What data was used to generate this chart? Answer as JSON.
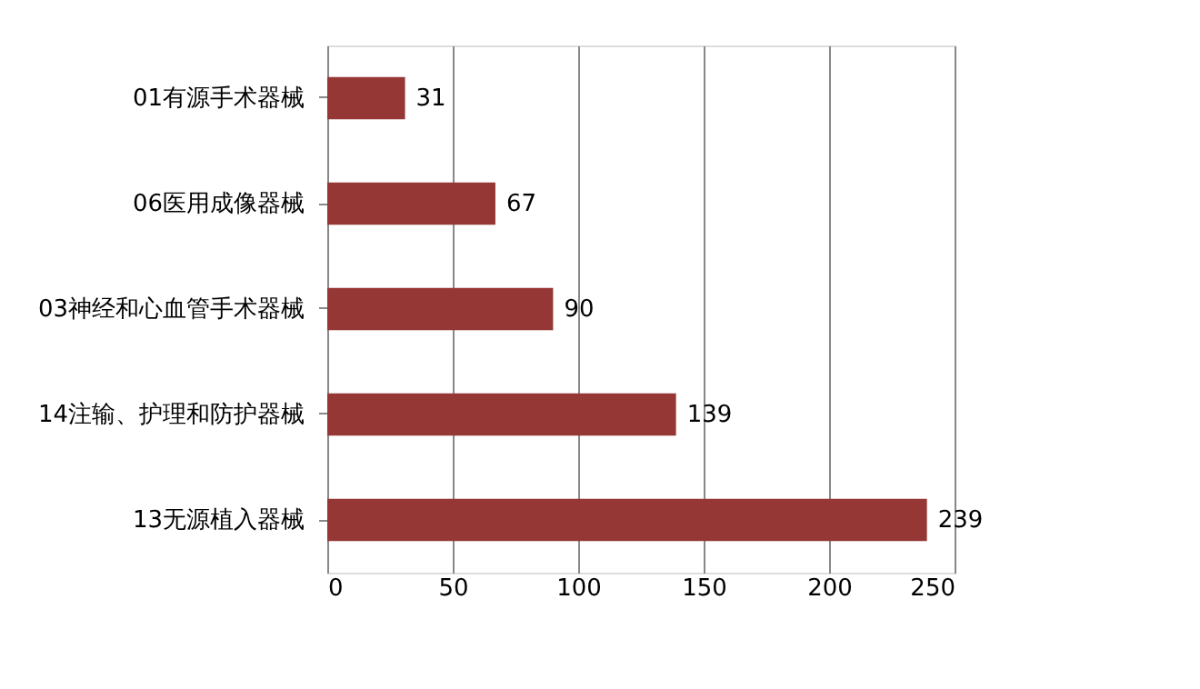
{
  "chart_data": {
    "type": "bar",
    "orientation": "horizontal",
    "categories": [
      "01有源手术器械",
      "06医用成像器械",
      "03神经和心血管手术器械",
      "14注输、护理和防护器械",
      "13无源植入器械"
    ],
    "values": [
      31,
      67,
      90,
      139,
      239
    ],
    "color": "#953735",
    "xlim": [
      0,
      250
    ],
    "xticks": [
      0,
      50,
      100,
      150,
      200,
      250
    ],
    "grid": "x",
    "data_labels": true
  }
}
